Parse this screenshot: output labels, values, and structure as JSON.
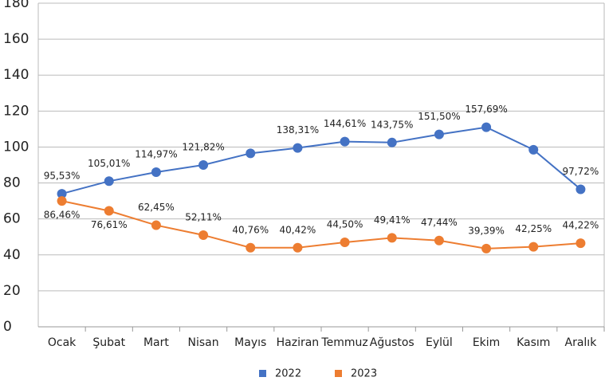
{
  "chart_data": {
    "type": "line",
    "categories": [
      "Ocak",
      "Şubat",
      "Mart",
      "Nisan",
      "Mayıs",
      "Haziran",
      "Temmuz",
      "Ağustos",
      "Eylül",
      "Ekim",
      "Kasım",
      "Aralık"
    ],
    "series": [
      {
        "name": "2022",
        "color": "#4472c4",
        "values": [
          74,
          81,
          86,
          90,
          96.5,
          99.5,
          103,
          102.5,
          107,
          111,
          98.5,
          76.5
        ],
        "point_labels": [
          "95,53%",
          "105,01%",
          "114,97%",
          "121,82%",
          null,
          "138,31%",
          "144,61%",
          "143,75%",
          "151,50%",
          "157,69%",
          null,
          "97,72%"
        ]
      },
      {
        "name": "2023",
        "color": "#ed7d31",
        "values": [
          70,
          64.5,
          56.5,
          51,
          44,
          44,
          47,
          49.5,
          48,
          43.5,
          44.5,
          46.5
        ],
        "point_labels": [
          "86,46%",
          "76,61%",
          "62,45%",
          "52,11%",
          "40,76%",
          "40,42%",
          "44,50%",
          "49,41%",
          "47,44%",
          "39,39%",
          "42,25%",
          "44,22%"
        ]
      }
    ],
    "ylim": [
      0,
      180
    ],
    "yticks": [
      0,
      20,
      40,
      60,
      80,
      100,
      120,
      140,
      160,
      180
    ],
    "grid": true,
    "legend": "bottom"
  }
}
